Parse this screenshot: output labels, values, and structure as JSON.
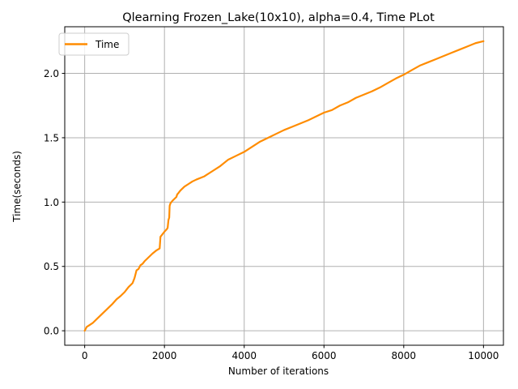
{
  "chart_data": {
    "type": "line",
    "title": "Qlearning Frozen_Lake(10x10),  alpha=0.4, Time PLot",
    "xlabel": "Number of iterations",
    "ylabel": "Time(seconds)",
    "xlim": [
      -500,
      10500
    ],
    "ylim": [
      -0.1125,
      2.3625
    ],
    "x_ticks": [
      0,
      2000,
      4000,
      6000,
      8000,
      10000
    ],
    "y_ticks": [
      0.0,
      0.5,
      1.0,
      1.5,
      2.0
    ],
    "x_tick_labels": [
      "0",
      "2000",
      "4000",
      "6000",
      "8000",
      "10000"
    ],
    "y_tick_labels": [
      "0.0",
      "0.5",
      "1.0",
      "1.5",
      "2.0"
    ],
    "grid": true,
    "legend": "upper-left",
    "series": [
      {
        "name": "Time",
        "color": "#ff8c00",
        "x": [
          0,
          50,
          100,
          200,
          300,
          400,
          500,
          600,
          700,
          800,
          900,
          1000,
          1050,
          1100,
          1200,
          1250,
          1300,
          1350,
          1400,
          1450,
          1500,
          1600,
          1700,
          1800,
          1880,
          1900,
          2000,
          2060,
          2080,
          2100,
          2120,
          2130,
          2150,
          2200,
          2300,
          2320,
          2350,
          2400,
          2500,
          2600,
          2700,
          2800,
          3000,
          3200,
          3400,
          3600,
          3800,
          4000,
          4200,
          4400,
          4600,
          4800,
          5000,
          5200,
          5400,
          5600,
          5800,
          6000,
          6200,
          6400,
          6600,
          6800,
          7000,
          7200,
          7400,
          7600,
          7800,
          8000,
          8200,
          8400,
          8600,
          8800,
          9000,
          9200,
          9400,
          9600,
          9800,
          10000
        ],
        "values": [
          0.0,
          0.03,
          0.04,
          0.06,
          0.09,
          0.12,
          0.15,
          0.18,
          0.21,
          0.245,
          0.27,
          0.3,
          0.32,
          0.34,
          0.37,
          0.41,
          0.47,
          0.48,
          0.51,
          0.52,
          0.54,
          0.57,
          0.6,
          0.625,
          0.64,
          0.73,
          0.77,
          0.79,
          0.8,
          0.86,
          0.88,
          0.97,
          0.99,
          1.01,
          1.04,
          1.06,
          1.07,
          1.09,
          1.12,
          1.14,
          1.16,
          1.175,
          1.2,
          1.24,
          1.28,
          1.33,
          1.36,
          1.39,
          1.43,
          1.47,
          1.5,
          1.53,
          1.56,
          1.585,
          1.61,
          1.635,
          1.665,
          1.695,
          1.715,
          1.75,
          1.775,
          1.81,
          1.835,
          1.86,
          1.89,
          1.925,
          1.96,
          1.99,
          2.025,
          2.06,
          2.085,
          2.11,
          2.135,
          2.16,
          2.185,
          2.21,
          2.235,
          2.25
        ]
      }
    ]
  }
}
